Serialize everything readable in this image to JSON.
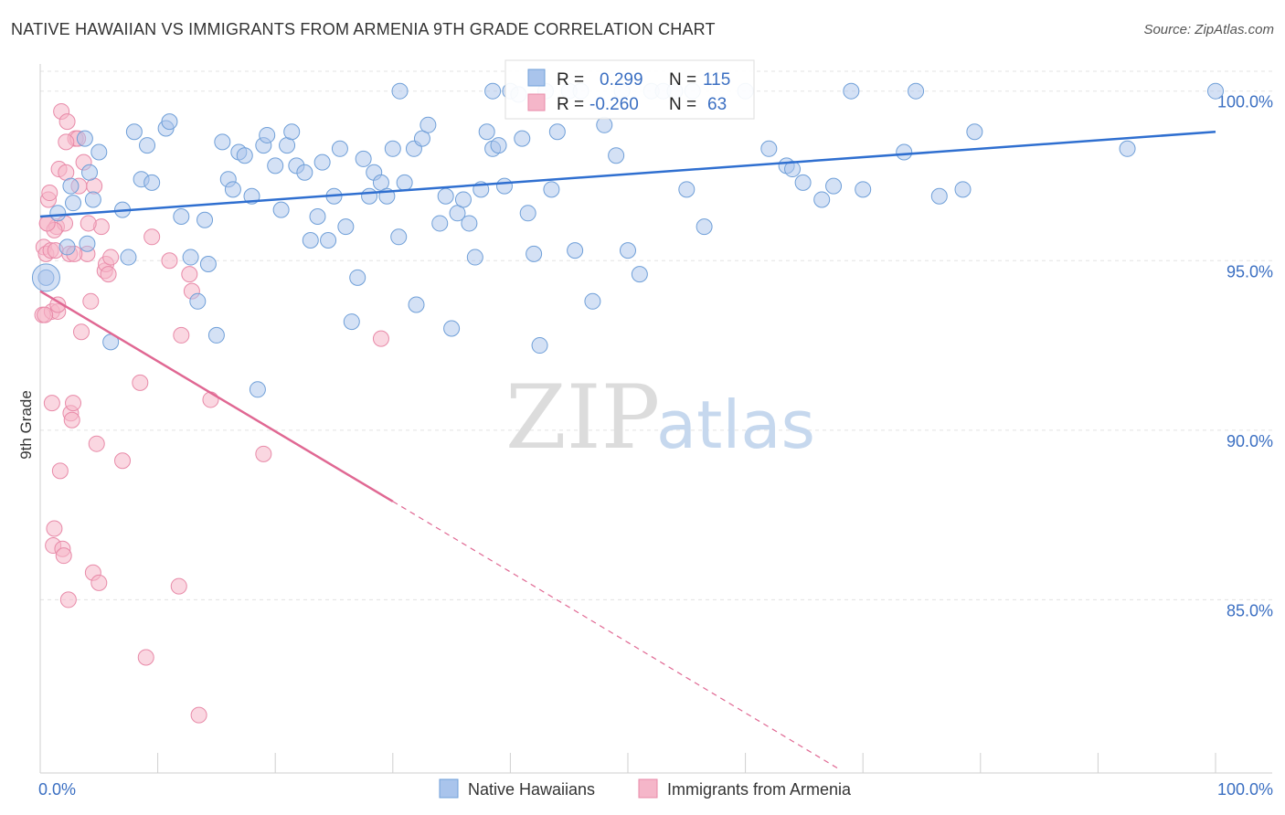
{
  "header": {
    "title": "NATIVE HAWAIIAN VS IMMIGRANTS FROM ARMENIA 9TH GRADE CORRELATION CHART",
    "source": "Source: ZipAtlas.com"
  },
  "watermark": {
    "part1": "ZIP",
    "part2": "atlas"
  },
  "stats": {
    "blue": {
      "r_label": "R =",
      "r_value": "0.299",
      "n_label": "N =",
      "n_value": "115"
    },
    "pink": {
      "r_label": "R =",
      "r_value": "-0.260",
      "n_label": "N =",
      "n_value": "63"
    }
  },
  "colors": {
    "blue_fill": "#a9c4ec",
    "blue_stroke": "#6f9fd8",
    "blue_line": "#2f6fd0",
    "pink_fill": "#f5b6c9",
    "pink_stroke": "#e88aa8",
    "pink_line": "#e06893",
    "grid": "#e3e3e3",
    "axis_text": "#3b6fc2"
  },
  "chart_data": {
    "type": "scatter",
    "title": "NATIVE HAWAIIAN VS IMMIGRANTS FROM ARMENIA 9TH GRADE CORRELATION CHART",
    "xlabel": "",
    "ylabel": "9th Grade",
    "xlim": [
      0,
      100
    ],
    "ylim": [
      80,
      100.8
    ],
    "x_tick_labels": [
      "0.0%",
      "100.0%"
    ],
    "y_ticks": [
      {
        "value": 85,
        "label": "85.0%"
      },
      {
        "value": 90,
        "label": "90.0%"
      },
      {
        "value": 95,
        "label": "95.0%"
      },
      {
        "value": 100,
        "label": "100.0%"
      }
    ],
    "grid": true,
    "legend_position": "bottom",
    "series": [
      {
        "name": "Native Hawaiians",
        "trend": {
          "x": [
            0,
            100
          ],
          "y": [
            96.3,
            98.8
          ]
        },
        "points": [
          [
            0.5,
            94.5
          ],
          [
            1.5,
            96.4
          ],
          [
            2.3,
            95.4
          ],
          [
            2.6,
            97.2
          ],
          [
            2.8,
            96.7
          ],
          [
            3.8,
            98.6
          ],
          [
            4.0,
            95.5
          ],
          [
            4.2,
            97.6
          ],
          [
            4.5,
            96.8
          ],
          [
            5.0,
            98.2
          ],
          [
            6.0,
            92.6
          ],
          [
            7.0,
            96.5
          ],
          [
            7.5,
            95.1
          ],
          [
            8.0,
            98.8
          ],
          [
            8.6,
            97.4
          ],
          [
            9.1,
            98.4
          ],
          [
            9.5,
            97.3
          ],
          [
            10.7,
            98.9
          ],
          [
            11.0,
            99.1
          ],
          [
            12.0,
            96.3
          ],
          [
            12.8,
            95.1
          ],
          [
            13.4,
            93.8
          ],
          [
            14.0,
            96.2
          ],
          [
            14.3,
            94.9
          ],
          [
            15.0,
            92.8
          ],
          [
            15.5,
            98.5
          ],
          [
            16.0,
            97.4
          ],
          [
            16.4,
            97.1
          ],
          [
            16.9,
            98.2
          ],
          [
            17.4,
            98.1
          ],
          [
            18.0,
            96.9
          ],
          [
            18.5,
            91.2
          ],
          [
            19.0,
            98.4
          ],
          [
            19.3,
            98.7
          ],
          [
            20.0,
            97.8
          ],
          [
            20.5,
            96.5
          ],
          [
            21.0,
            98.4
          ],
          [
            21.4,
            98.8
          ],
          [
            21.8,
            97.8
          ],
          [
            22.5,
            97.6
          ],
          [
            23.0,
            95.6
          ],
          [
            23.6,
            96.3
          ],
          [
            24.0,
            97.9
          ],
          [
            24.5,
            95.6
          ],
          [
            25.0,
            96.9
          ],
          [
            25.5,
            98.3
          ],
          [
            26.0,
            96.0
          ],
          [
            26.5,
            93.2
          ],
          [
            27.0,
            94.5
          ],
          [
            27.5,
            98.0
          ],
          [
            28.0,
            96.9
          ],
          [
            28.4,
            97.6
          ],
          [
            29.0,
            97.3
          ],
          [
            29.5,
            96.9
          ],
          [
            30.0,
            98.3
          ],
          [
            30.5,
            95.7
          ],
          [
            31.0,
            97.3
          ],
          [
            31.8,
            98.3
          ],
          [
            32.0,
            93.7
          ],
          [
            32.5,
            98.6
          ],
          [
            33.0,
            99.0
          ],
          [
            34.0,
            96.1
          ],
          [
            34.5,
            96.9
          ],
          [
            35.0,
            93.0
          ],
          [
            35.5,
            96.4
          ],
          [
            36.0,
            96.8
          ],
          [
            36.5,
            96.1
          ],
          [
            37.0,
            95.1
          ],
          [
            37.5,
            97.1
          ],
          [
            38.0,
            98.8
          ],
          [
            38.5,
            98.3
          ],
          [
            39.0,
            98.4
          ],
          [
            39.5,
            97.2
          ],
          [
            40.0,
            100.0
          ],
          [
            41.0,
            98.6
          ],
          [
            41.5,
            96.4
          ],
          [
            42.0,
            95.2
          ],
          [
            42.5,
            92.5
          ],
          [
            43.0,
            100.0
          ],
          [
            43.5,
            97.1
          ],
          [
            44.0,
            98.8
          ],
          [
            45.0,
            100.0
          ],
          [
            45.5,
            95.3
          ],
          [
            46.0,
            100.0
          ],
          [
            47.0,
            93.8
          ],
          [
            48.0,
            99.0
          ],
          [
            49.0,
            98.1
          ],
          [
            49.5,
            100.0
          ],
          [
            50.0,
            95.3
          ],
          [
            51.0,
            94.6
          ],
          [
            52.0,
            100.0
          ],
          [
            53.0,
            100.0
          ],
          [
            54.0,
            100.0
          ],
          [
            55.0,
            97.1
          ],
          [
            55.5,
            100.0
          ],
          [
            56.5,
            96.0
          ],
          [
            60.0,
            100.0
          ],
          [
            62.0,
            98.3
          ],
          [
            63.5,
            97.8
          ],
          [
            64.0,
            97.7
          ],
          [
            64.9,
            97.3
          ],
          [
            66.5,
            96.8
          ],
          [
            67.5,
            97.2
          ],
          [
            69.0,
            100.0
          ],
          [
            70.0,
            97.1
          ],
          [
            73.5,
            98.2
          ],
          [
            74.5,
            100.0
          ],
          [
            76.5,
            96.9
          ],
          [
            78.5,
            97.1
          ],
          [
            79.5,
            98.8
          ],
          [
            92.5,
            98.3
          ],
          [
            100.0,
            100.0
          ],
          [
            38.5,
            100.0
          ],
          [
            40.7,
            99.9
          ],
          [
            30.6,
            100.0
          ]
        ]
      },
      {
        "name": "Immigrants from Armenia",
        "trend": {
          "x": [
            0,
            30
          ],
          "y": [
            94.1,
            87.9
          ],
          "dashed_to": {
            "x": 68,
            "y": 80
          }
        },
        "points": [
          [
            0.2,
            93.4
          ],
          [
            0.3,
            95.4
          ],
          [
            0.5,
            95.2
          ],
          [
            0.6,
            96.1
          ],
          [
            0.7,
            96.8
          ],
          [
            0.8,
            97.0
          ],
          [
            0.9,
            95.3
          ],
          [
            1.0,
            93.5
          ],
          [
            1.1,
            86.6
          ],
          [
            1.2,
            87.1
          ],
          [
            1.3,
            95.3
          ],
          [
            1.4,
            96.0
          ],
          [
            1.5,
            93.5
          ],
          [
            1.6,
            97.7
          ],
          [
            1.7,
            88.8
          ],
          [
            1.8,
            99.4
          ],
          [
            1.9,
            86.5
          ],
          [
            2.0,
            86.3
          ],
          [
            2.1,
            96.1
          ],
          [
            2.2,
            97.6
          ],
          [
            2.3,
            99.1
          ],
          [
            2.4,
            85.0
          ],
          [
            2.5,
            95.2
          ],
          [
            2.6,
            90.5
          ],
          [
            2.7,
            90.3
          ],
          [
            2.8,
            90.8
          ],
          [
            3.0,
            98.6
          ],
          [
            3.2,
            98.6
          ],
          [
            3.5,
            92.9
          ],
          [
            3.7,
            97.9
          ],
          [
            4.0,
            95.2
          ],
          [
            4.3,
            93.8
          ],
          [
            4.5,
            85.8
          ],
          [
            4.6,
            97.2
          ],
          [
            4.8,
            89.6
          ],
          [
            5.0,
            85.5
          ],
          [
            5.2,
            96.0
          ],
          [
            5.5,
            94.7
          ],
          [
            5.6,
            94.9
          ],
          [
            6.0,
            95.1
          ],
          [
            7.0,
            89.1
          ],
          [
            8.5,
            91.4
          ],
          [
            9.0,
            83.3
          ],
          [
            9.5,
            95.7
          ],
          [
            11.0,
            95.0
          ],
          [
            11.8,
            85.4
          ],
          [
            12.0,
            92.8
          ],
          [
            12.7,
            94.6
          ],
          [
            12.9,
            94.1
          ],
          [
            13.5,
            81.6
          ],
          [
            14.5,
            90.9
          ],
          [
            19.0,
            89.3
          ],
          [
            29.0,
            92.7
          ],
          [
            1.0,
            90.8
          ],
          [
            0.4,
            93.4
          ],
          [
            2.2,
            98.5
          ],
          [
            3.3,
            97.2
          ],
          [
            5.8,
            94.6
          ],
          [
            1.2,
            95.9
          ],
          [
            2.9,
            95.2
          ],
          [
            0.6,
            96.1
          ],
          [
            1.5,
            93.7
          ],
          [
            4.1,
            96.1
          ]
        ]
      }
    ]
  },
  "legend": {
    "items": [
      {
        "label": "Native Hawaiians"
      },
      {
        "label": "Immigrants from Armenia"
      }
    ]
  }
}
